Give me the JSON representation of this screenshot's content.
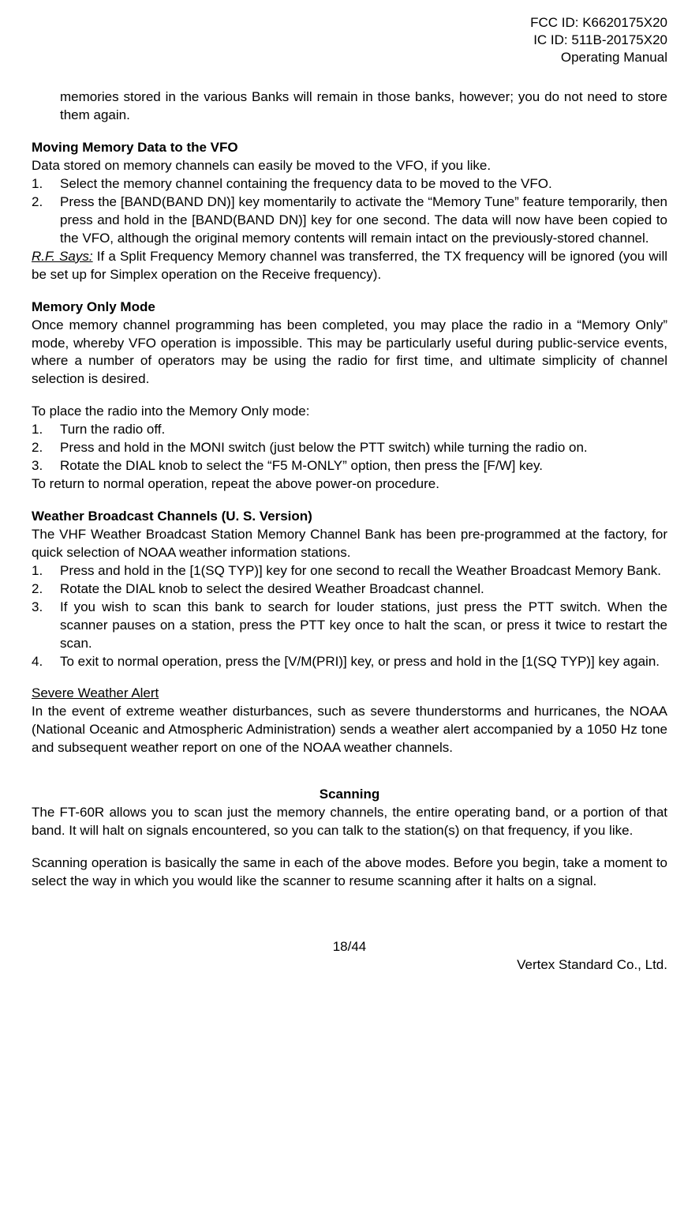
{
  "header": {
    "fcc_id": "FCC ID: K6620175X20",
    "ic_id": "IC ID: 511B-20175X20",
    "manual_type": "Operating Manual"
  },
  "intro_para": "memories stored in the various Banks will remain in those banks, however; you do not need to store them again.",
  "moving_memory": {
    "heading": "Moving Memory Data to the VFO",
    "intro": "Data stored on memory channels can easily be moved to the VFO, if you like.",
    "items": [
      {
        "num": "1.",
        "text": "Select the memory channel containing the frequency data to be moved to the VFO."
      },
      {
        "num": "2.",
        "text": "Press the [BAND(BAND DN)] key momentarily to activate the “Memory Tune” feature temporarily, then press and hold in the [BAND(BAND DN)] key for one second. The data will now have been copied to the VFO, although the original memory contents will remain intact on the previously-stored channel."
      }
    ],
    "rf_label": "R.F. Says:",
    "rf_text": " If a Split Frequency Memory channel was transferred, the TX frequency will be ignored (you will be set up for Simplex operation on the Receive frequency)."
  },
  "memory_only": {
    "heading": "Memory Only Mode",
    "intro": "Once memory channel programming has been completed, you may place the radio in a “Memory Only” mode, whereby VFO operation is impossible. This may be particularly useful during public-service events, where a number of operators may be using the radio for first time, and ultimate simplicity of channel selection is desired.",
    "place_intro": "To place the radio into the Memory Only mode:",
    "items": [
      {
        "num": "1.",
        "text": "Turn the radio off."
      },
      {
        "num": "2.",
        "text": "Press and hold in the MONI switch (just below the PTT switch) while turning the radio on."
      },
      {
        "num": "3.",
        "text": "Rotate the DIAL knob to select the “F5 M-ONLY” option, then press the [F/W] key."
      }
    ],
    "return_text": "To return to normal operation, repeat the above power-on procedure."
  },
  "weather": {
    "heading": "Weather Broadcast Channels (U. S. Version)",
    "intro": "The VHF Weather Broadcast Station Memory Channel Bank has been pre-programmed at the factory, for quick selection of NOAA weather information stations.",
    "items": [
      {
        "num": "1.",
        "text": "Press and hold in the [1(SQ TYP)] key for one second to recall the Weather Broadcast Memory Bank."
      },
      {
        "num": "2.",
        "text": "Rotate the DIAL knob to select the desired Weather Broadcast channel."
      },
      {
        "num": "3.",
        "text": "If you wish to scan this bank to search for louder stations, just press the PTT switch. When the scanner pauses on a station, press the PTT key once to halt the scan, or press it twice to restart the scan."
      },
      {
        "num": "4.",
        "text": "To exit to normal operation, press the [V/M(PRI)] key, or press and hold in the [1(SQ TYP)] key again."
      }
    ]
  },
  "severe": {
    "heading": "Severe Weather Alert",
    "text": "In the event of extreme weather disturbances, such as severe thunderstorms and hurricanes, the NOAA (National Oceanic and Atmospheric Administration) sends a weather alert accompanied by a 1050 Hz tone and subsequent weather report on one of the NOAA weather channels."
  },
  "scanning": {
    "heading": "Scanning",
    "para1": "The FT-60R allows you to scan just the memory channels, the entire operating band, or a portion of that band. It will halt on signals encountered, so you can talk to the station(s) on that frequency, if you like.",
    "para2": "Scanning operation is basically the same in each of the above modes. Before you begin, take a moment to select the way in which you would like the scanner to resume scanning after it halts on a signal."
  },
  "footer": {
    "page_num": "18/44",
    "company": "Vertex Standard Co., Ltd."
  }
}
